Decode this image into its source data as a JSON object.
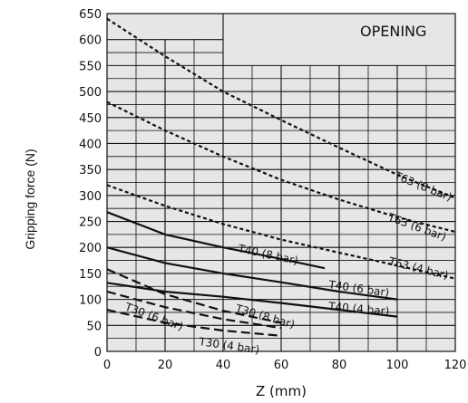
{
  "chart_data": {
    "type": "line",
    "title": "OPENING",
    "xlabel": "Z (mm)",
    "ylabel": "Gripping force (N)",
    "xlim": [
      0,
      120
    ],
    "ylim": [
      0,
      650
    ],
    "xticks": [
      0,
      20,
      40,
      60,
      80,
      100,
      120
    ],
    "yticks": [
      0,
      50,
      100,
      150,
      200,
      250,
      300,
      350,
      400,
      450,
      500,
      550,
      600,
      650
    ],
    "grid": true,
    "colors": {
      "background": "#e6e6e6",
      "grid": "#111111",
      "lines": "#111111"
    },
    "series": [
      {
        "name": "T63 (8 bar)",
        "style": "dotted",
        "x": [
          0,
          20,
          40,
          60,
          80,
          100,
          120
        ],
        "y": [
          640,
          568,
          500,
          445,
          392,
          340,
          295
        ]
      },
      {
        "name": "T63 (6 bar)",
        "style": "dotted",
        "x": [
          0,
          20,
          40,
          60,
          80,
          100,
          120
        ],
        "y": [
          480,
          425,
          375,
          330,
          292,
          258,
          230
        ]
      },
      {
        "name": "T63 (4 bar)",
        "style": "dotted",
        "x": [
          0,
          20,
          40,
          60,
          80,
          100,
          120
        ],
        "y": [
          320,
          280,
          245,
          215,
          190,
          165,
          140
        ]
      },
      {
        "name": "T40 (8 bar)",
        "style": "solid",
        "x": [
          0,
          20,
          40,
          60,
          75
        ],
        "y": [
          268,
          225,
          200,
          178,
          160
        ]
      },
      {
        "name": "T40 (6 bar)",
        "style": "solid",
        "x": [
          0,
          20,
          40,
          60,
          80,
          100
        ],
        "y": [
          200,
          170,
          150,
          133,
          115,
          100
        ]
      },
      {
        "name": "T40 (4 bar)",
        "style": "solid",
        "x": [
          0,
          20,
          40,
          60,
          80,
          100
        ],
        "y": [
          132,
          115,
          105,
          93,
          80,
          67
        ]
      },
      {
        "name": "T30 (8 bar)",
        "style": "dashed",
        "x": [
          0,
          20,
          40,
          60
        ],
        "y": [
          158,
          110,
          78,
          55
        ]
      },
      {
        "name": "T30 (6 bar)",
        "style": "dashed",
        "x": [
          0,
          20,
          40,
          60
        ],
        "y": [
          115,
          85,
          62,
          45
        ]
      },
      {
        "name": "T30 (4 bar)",
        "style": "dashed",
        "x": [
          0,
          20,
          40,
          60
        ],
        "y": [
          80,
          55,
          40,
          30
        ]
      }
    ],
    "annotations": [
      {
        "text": "T63 (8 bar)",
        "series": 0
      },
      {
        "text": "T63 (6 bar)",
        "series": 1
      },
      {
        "text": "T63 (4 bar)",
        "series": 2
      },
      {
        "text": "T40 (8 bar)",
        "series": 3
      },
      {
        "text": "T40 (6 bar)",
        "series": 4
      },
      {
        "text": "T40 (4 bar)",
        "series": 5
      },
      {
        "text": "T30 (8 bar)",
        "series": 6
      },
      {
        "text": "T30 (6 bar)",
        "series": 7
      },
      {
        "text": "T30 (4 bar)",
        "series": 8
      }
    ]
  }
}
